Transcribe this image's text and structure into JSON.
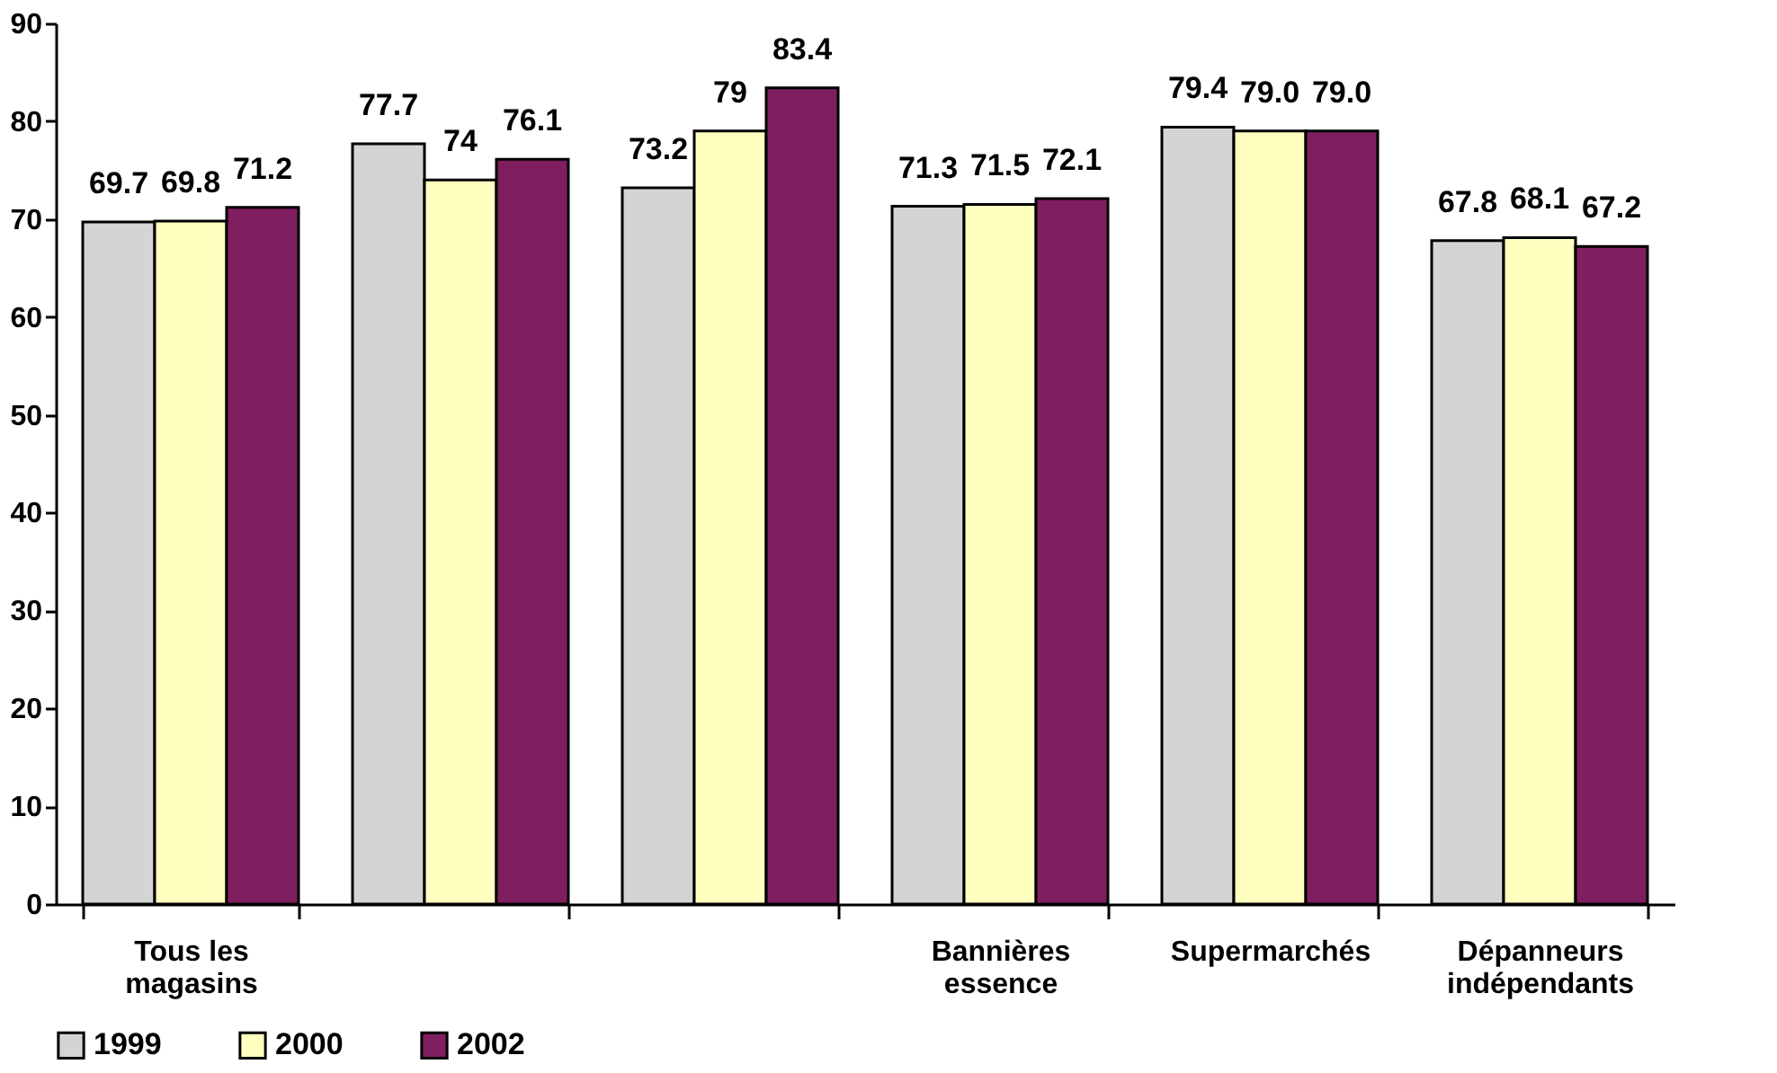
{
  "chart_data": {
    "type": "bar",
    "categories": [
      "Tous les magasins",
      null,
      null,
      "Bannières essence",
      "Supermarchés",
      "Dépanneurs indépendants"
    ],
    "series": [
      {
        "name": "1999",
        "color": "#d4d4d4",
        "values": [
          69.7,
          77.7,
          73.2,
          71.3,
          79.4,
          67.8
        ],
        "value_labels": [
          "69.7",
          "77.7",
          "73.2",
          "71.3",
          "79.4",
          "67.8"
        ]
      },
      {
        "name": "2000",
        "color": "#ffffc0",
        "values": [
          69.8,
          74,
          79,
          71.5,
          79.0,
          68.1
        ],
        "value_labels": [
          "69.8",
          "74",
          "79",
          "71.5",
          "79.0",
          "68.1"
        ]
      },
      {
        "name": "2002",
        "color": "#7f1f5f",
        "values": [
          71.2,
          76.1,
          83.4,
          72.1,
          79.0,
          67.2
        ],
        "value_labels": [
          "71.2",
          "76.1",
          "83.4",
          "72.1",
          "79.0",
          "67.2"
        ]
      }
    ],
    "ylim": [
      0,
      90
    ],
    "yticks": [
      0,
      10,
      20,
      30,
      40,
      50,
      60,
      70,
      80,
      90
    ],
    "grid": false,
    "legend": "bottom"
  }
}
